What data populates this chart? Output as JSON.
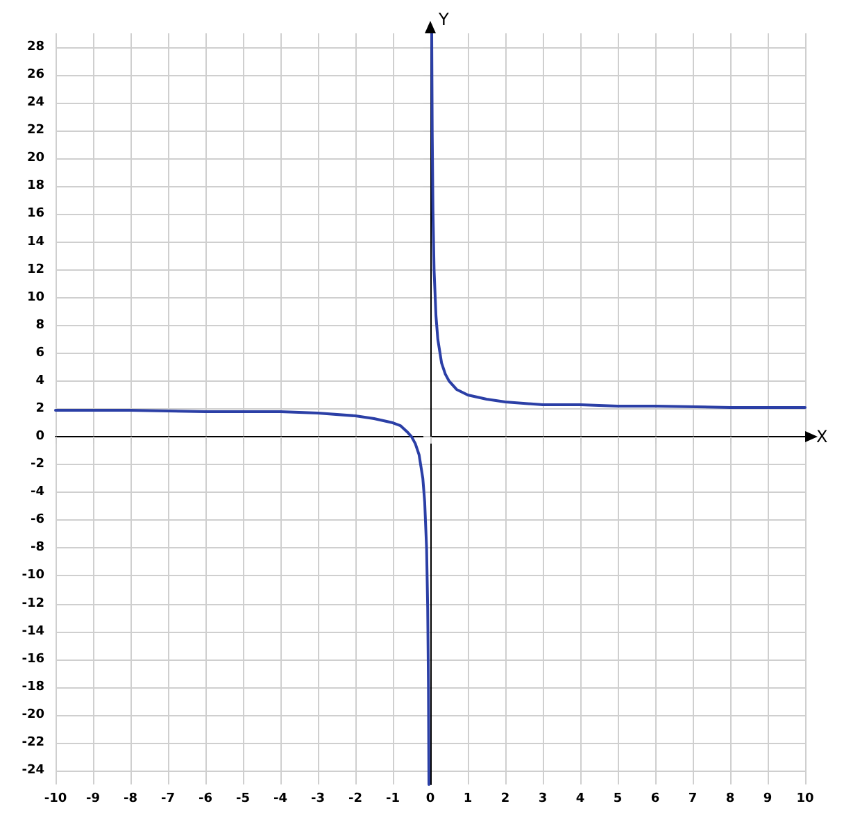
{
  "chart_data": {
    "type": "line",
    "xlabel": "X",
    "ylabel": "Y",
    "xlim": [
      -10,
      10
    ],
    "xticks": [
      -10,
      -9,
      -8,
      -7,
      -6,
      -5,
      -4,
      -3,
      -2,
      -1,
      0,
      1,
      2,
      3,
      4,
      5,
      6,
      7,
      8,
      9,
      10
    ],
    "ylim": [
      -25,
      29
    ],
    "yticks": [
      -24,
      -22,
      -20,
      -18,
      -16,
      -14,
      -12,
      -10,
      -8,
      -6,
      -4,
      -2,
      0,
      2,
      4,
      6,
      8,
      10,
      12,
      14,
      16,
      18,
      20,
      22,
      24,
      26,
      28
    ],
    "grid": true,
    "marker": "none",
    "line_style": "solid",
    "series": [
      {
        "color": "#2b3fa6",
        "x": [
          -10,
          -8,
          -6,
          -5,
          -4,
          -3,
          -2,
          -1.5,
          -1,
          -0.8,
          -0.6,
          -0.5,
          -0.4,
          -0.3,
          -0.2,
          -0.15,
          -0.1,
          -0.07,
          -0.05,
          -0.037,
          0,
          0.037,
          0.05,
          0.07,
          0.1,
          0.15,
          0.2,
          0.3,
          0.4,
          0.5,
          0.7,
          1,
          1.5,
          2,
          3,
          4,
          5,
          6,
          8,
          10
        ],
        "values": [
          1.9,
          1.9,
          1.8,
          1.8,
          1.8,
          1.7,
          1.5,
          1.3,
          1,
          0.8,
          0.3,
          0,
          -0.5,
          -1.3,
          -3,
          -4.7,
          -8,
          -12.3,
          -18,
          -25,
          null,
          29,
          22,
          16.3,
          12,
          8.7,
          7,
          5.3,
          4.5,
          4,
          3.4,
          3,
          2.7,
          2.5,
          2.3,
          2.3,
          2.2,
          2.2,
          2.1,
          2.1
        ]
      }
    ]
  }
}
